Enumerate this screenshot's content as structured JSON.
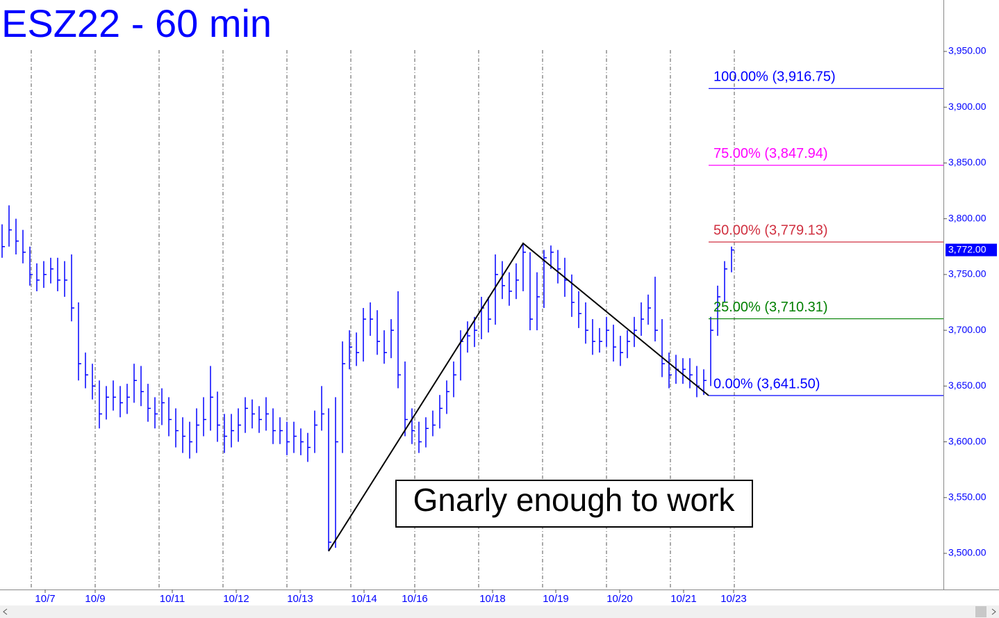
{
  "chart_data": {
    "type": "ohlc",
    "title": "ESZ22 - 60 min",
    "color": "#0000ff",
    "high": [
      3795,
      3812,
      3800,
      3790,
      3775,
      3760,
      3762,
      3765,
      3765,
      3762,
      3768,
      3725,
      3680,
      3670,
      3655,
      3650,
      3655,
      3650,
      3652,
      3670,
      3668,
      3652,
      3640,
      3648,
      3640,
      3630,
      3622,
      3618,
      3630,
      3640,
      3668,
      3645,
      3625,
      3625,
      3630,
      3640,
      3638,
      3632,
      3640,
      3630,
      3622,
      3618,
      3618,
      3612,
      3608,
      3628,
      3650,
      3630,
      3640,
      3690,
      3700,
      3698,
      3720,
      3725,
      3718,
      3700,
      3710,
      3735,
      3672,
      3630,
      3618,
      3622,
      3628,
      3642,
      3655,
      3672,
      3700,
      3708,
      3712,
      3730,
      3730,
      3768,
      3762,
      3752,
      3760,
      3778,
      3770,
      3752,
      3772,
      3776,
      3772,
      3765,
      3750,
      3735,
      3725,
      3710,
      3702,
      3712,
      3705,
      3695,
      3700,
      3712,
      3725,
      3732,
      3748,
      3710,
      3680,
      3678,
      3675,
      3675,
      3668,
      3665,
      3712,
      3740,
      3762,
      3775
    ],
    "low": [
      3765,
      3775,
      3768,
      3760,
      3740,
      3735,
      3738,
      3742,
      3735,
      3730,
      3708,
      3655,
      3648,
      3638,
      3612,
      3620,
      3628,
      3622,
      3625,
      3635,
      3632,
      3618,
      3612,
      3615,
      3605,
      3595,
      3590,
      3585,
      3590,
      3605,
      3610,
      3600,
      3590,
      3595,
      3600,
      3608,
      3612,
      3608,
      3610,
      3598,
      3598,
      3588,
      3590,
      3588,
      3582,
      3590,
      3610,
      3502,
      3505,
      3590,
      3665,
      3668,
      3672,
      3695,
      3678,
      3670,
      3675,
      3648,
      3605,
      3598,
      3590,
      3595,
      3605,
      3612,
      3625,
      3640,
      3655,
      3680,
      3685,
      3692,
      3698,
      3705,
      3728,
      3722,
      3728,
      3735,
      3700,
      3700,
      3720,
      3755,
      3742,
      3730,
      3712,
      3702,
      3688,
      3678,
      3680,
      3685,
      3672,
      3668,
      3675,
      3685,
      3695,
      3705,
      3690,
      3658,
      3648,
      3652,
      3652,
      3648,
      3640,
      3642,
      3650,
      3695,
      3725,
      3752
    ],
    "close": [
      3775,
      3790,
      3780,
      3770,
      3750,
      3745,
      3750,
      3755,
      3745,
      3745,
      3720,
      3670,
      3660,
      3650,
      3625,
      3640,
      3640,
      3635,
      3640,
      3655,
      3645,
      3630,
      3625,
      3635,
      3620,
      3610,
      3605,
      3600,
      3615,
      3620,
      3640,
      3615,
      3605,
      3610,
      3615,
      3630,
      3625,
      3620,
      3625,
      3610,
      3610,
      3600,
      3605,
      3600,
      3595,
      3615,
      3625,
      3510,
      3600,
      3670,
      3685,
      3680,
      3710,
      3710,
      3690,
      3680,
      3700,
      3660,
      3620,
      3610,
      3600,
      3612,
      3615,
      3630,
      3645,
      3660,
      3690,
      3695,
      3700,
      3720,
      3710,
      3750,
      3740,
      3735,
      3745,
      3770,
      3710,
      3730,
      3765,
      3770,
      3755,
      3745,
      3725,
      3715,
      3700,
      3690,
      3690,
      3700,
      3685,
      3680,
      3690,
      3700,
      3710,
      3720,
      3700,
      3670,
      3660,
      3665,
      3665,
      3660,
      3650,
      3655,
      3700,
      3730,
      3755,
      3772
    ],
    "xlim": [
      -0.3,
      135.5
    ],
    "ylim": [
      3467.6,
      3996.1
    ],
    "xticks": [
      {
        "value": 6.2,
        "label": "10/7"
      },
      {
        "value": 13.4,
        "label": "10/9"
      },
      {
        "value": 24.5,
        "label": "10/11"
      },
      {
        "value": 33.7,
        "label": "10/12"
      },
      {
        "value": 42.9,
        "label": "10/13"
      },
      {
        "value": 52.1,
        "label": "10/14"
      },
      {
        "value": 59.4,
        "label": "10/16"
      },
      {
        "value": 70.6,
        "label": "10/18"
      },
      {
        "value": 79.7,
        "label": "10/19"
      },
      {
        "value": 88.9,
        "label": "10/20"
      },
      {
        "value": 98.1,
        "label": "10/21"
      },
      {
        "value": 105.3,
        "label": "10/23"
      }
    ],
    "xgrid": [
      4.2,
      13.4,
      22.6,
      31.8,
      41,
      50.2,
      59.4,
      68.6,
      77.8,
      87,
      96.2,
      105.4
    ],
    "yticks": [
      {
        "value": 3500,
        "label": "3,500.00"
      },
      {
        "value": 3550,
        "label": "3,550.00"
      },
      {
        "value": 3600,
        "label": "3,600.00"
      },
      {
        "value": 3650,
        "label": "3,650.00"
      },
      {
        "value": 3700,
        "label": "3,700.00"
      },
      {
        "value": 3750,
        "label": "3,750.00"
      },
      {
        "value": 3800,
        "label": "3,800.00"
      },
      {
        "value": 3850,
        "label": "3,850.00"
      },
      {
        "value": 3900,
        "label": "3,900.00"
      },
      {
        "value": 3950,
        "label": "3,950.00"
      }
    ],
    "swing": {
      "x": [
        47,
        75,
        101.7
      ],
      "y": [
        3502,
        3778,
        3641.5
      ],
      "color": "#000000"
    },
    "levels": [
      {
        "label": "100.00% (3,916.75)",
        "value": 3916.75,
        "color": "#0000ff"
      },
      {
        "label": "75.00% (3,847.94)",
        "value": 3847.94,
        "color": "#ff00ff"
      },
      {
        "label": "50.00% (3,779.13)",
        "value": 3779.13,
        "color": "#d03040"
      },
      {
        "label": "25.00% (3,710.31)",
        "value": 3710.31,
        "color": "#008000"
      },
      {
        "label": "0.00% (3,641.50)",
        "value": 3641.5,
        "color": "#0000ff"
      }
    ],
    "last_price": {
      "value": 3772,
      "label": "3,772.00"
    },
    "annotation": "Gnarly enough to work"
  }
}
